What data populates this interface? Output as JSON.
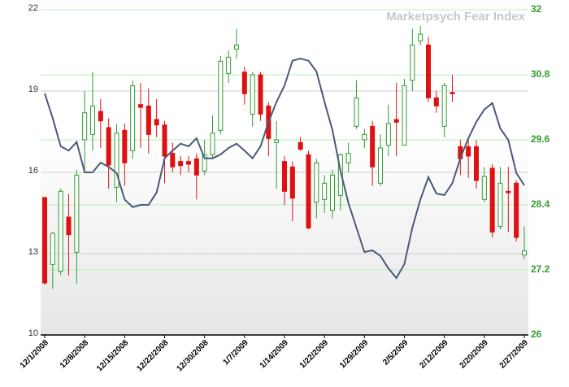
{
  "chart_data": {
    "type": "candlestick",
    "title": "Marketpsych Fear Index",
    "categories": [
      "12/1/2008",
      null,
      null,
      null,
      null,
      "12/8/2008",
      null,
      null,
      null,
      null,
      "12/15/2008",
      null,
      null,
      null,
      null,
      "12/22/2008",
      null,
      null,
      null,
      null,
      "12/30/2008",
      null,
      null,
      null,
      null,
      "1/7/2009",
      null,
      null,
      null,
      null,
      "1/14/2009",
      null,
      null,
      null,
      null,
      "1/22/2009",
      null,
      null,
      null,
      null,
      "1/29/2009",
      null,
      null,
      null,
      null,
      "2/5/2009",
      null,
      null,
      null,
      null,
      "2/12/2009",
      null,
      null,
      null,
      null,
      "2/20/2009",
      null,
      null,
      null,
      null,
      "2/27/2009"
    ],
    "open": [
      15.07,
      12.6,
      12.35,
      14.35,
      13.05,
      17.2,
      17.4,
      18.25,
      17.65,
      15.45,
      17.55,
      16.8,
      18.5,
      18.45,
      17.95,
      17.75,
      16.7,
      16.4,
      16.4,
      16.5,
      16.05,
      16.65,
      17.55,
      19.65,
      20.55,
      19.7,
      18.15,
      19.6,
      18.45,
      17.1,
      16.4,
      16.2,
      17.1,
      16.65,
      14.9,
      15.0,
      14.6,
      15.15,
      16.35,
      17.7,
      17.2,
      17.7,
      15.6,
      17.0,
      17.95,
      17.0,
      19.4,
      20.85,
      20.7,
      18.75,
      17.7,
      18.95,
      16.95,
      16.95,
      16.95,
      15.0,
      16.15,
      14.0,
      15.3,
      15.6,
      12.95
    ],
    "high": [
      15.1,
      13.8,
      15.4,
      15.2,
      16.1,
      19.0,
      19.7,
      18.7,
      18.0,
      17.8,
      17.8,
      19.4,
      19.3,
      19.1,
      18.7,
      17.9,
      17.1,
      16.6,
      16.6,
      16.7,
      17.2,
      18.1,
      20.3,
      20.5,
      21.3,
      19.9,
      19.7,
      19.7,
      18.6,
      17.9,
      16.6,
      16.4,
      17.3,
      16.8,
      16.5,
      15.9,
      16.1,
      16.7,
      17.1,
      19.4,
      17.6,
      17.9,
      17.4,
      18.5,
      19.3,
      19.45,
      21.3,
      21.4,
      21.0,
      19.0,
      19.3,
      19.6,
      17.2,
      17.3,
      17.2,
      16.2,
      16.3,
      16.2,
      16.2,
      15.7,
      14.0
    ],
    "low": [
      11.85,
      11.7,
      12.2,
      12.2,
      11.9,
      16.1,
      16.8,
      16.9,
      15.4,
      14.9,
      15.5,
      16.5,
      16.9,
      16.7,
      17.3,
      15.6,
      16.0,
      15.9,
      16.0,
      15.0,
      15.9,
      16.5,
      17.4,
      19.3,
      20.2,
      18.5,
      17.7,
      17.9,
      16.6,
      15.4,
      14.8,
      14.2,
      16.8,
      13.9,
      14.3,
      14.5,
      14.3,
      14.6,
      16.0,
      17.6,
      16.9,
      15.5,
      15.5,
      16.6,
      16.6,
      17.0,
      19.0,
      20.7,
      18.6,
      18.2,
      17.3,
      18.6,
      15.9,
      15.8,
      15.4,
      14.9,
      13.6,
      13.9,
      13.8,
      13.45,
      12.8
    ],
    "close": [
      11.92,
      13.75,
      15.3,
      13.7,
      15.9,
      18.2,
      18.45,
      17.9,
      16.27,
      17.45,
      16.35,
      19.2,
      18.4,
      17.4,
      17.75,
      16.6,
      16.2,
      16.25,
      16.3,
      15.9,
      16.65,
      17.45,
      20.1,
      20.25,
      20.7,
      18.9,
      19.6,
      18.15,
      17.25,
      17.2,
      15.3,
      15.05,
      16.85,
      13.95,
      16.35,
      15.6,
      15.9,
      16.65,
      16.7,
      18.75,
      17.4,
      16.2,
      16.9,
      17.8,
      17.85,
      19.2,
      20.7,
      21.1,
      18.75,
      18.45,
      19.2,
      18.9,
      16.5,
      16.6,
      15.7,
      15.85,
      13.8,
      15.6,
      15.25,
      13.6,
      13.1
    ],
    "up_color": "#2e9e2e",
    "down_color": "#dd1111",
    "line": {
      "axis": "y2",
      "color": "#4a5a78",
      "values": [
        30.46,
        30.0,
        29.48,
        29.4,
        29.56,
        29.0,
        29.0,
        29.18,
        29.1,
        28.99,
        28.5,
        28.36,
        28.4,
        28.4,
        28.63,
        29.26,
        29.4,
        29.53,
        29.48,
        29.63,
        29.26,
        29.26,
        29.33,
        29.45,
        29.53,
        29.4,
        29.26,
        29.48,
        29.93,
        30.3,
        30.6,
        31.06,
        31.1,
        31.06,
        30.86,
        30.3,
        29.78,
        29.03,
        28.43,
        27.98,
        27.53,
        27.56,
        27.46,
        27.23,
        27.05,
        27.31,
        27.98,
        28.5,
        28.91,
        28.61,
        28.58,
        28.8,
        29.26,
        29.63,
        29.93,
        30.16,
        30.28,
        29.81,
        29.6,
        28.99,
        28.76
      ]
    },
    "ylim": [
      10,
      22
    ],
    "yticks": [
      10,
      13,
      16,
      19,
      22
    ],
    "y2lim": [
      26,
      32
    ],
    "y2ticks": [
      26,
      27.2,
      28.4,
      29.6,
      30.8,
      32
    ],
    "grid": true
  }
}
